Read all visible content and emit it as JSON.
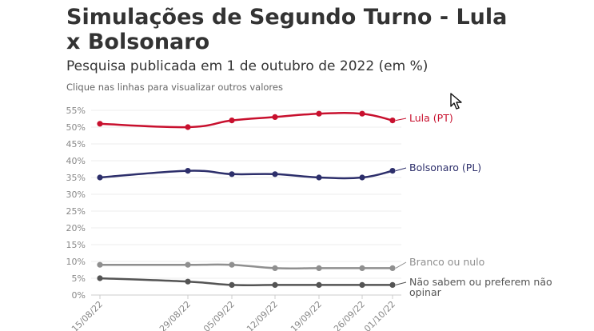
{
  "title": "Simulações de Segundo Turno - Lula x Bolsonaro",
  "subtitle": "Pesquisa publicada em 1 de outubro de 2022 (em %)",
  "hint": "Clique nas linhas para visualizar outros valores",
  "chart_data": {
    "type": "line",
    "x": [
      "15/08/22",
      "29/08/22",
      "05/09/22",
      "12/09/22",
      "19/09/22",
      "26/09/22",
      "01/10/22"
    ],
    "ylim": [
      0,
      55
    ],
    "y_ticks": [
      0,
      5,
      10,
      15,
      20,
      25,
      30,
      35,
      40,
      45,
      50,
      55
    ],
    "y_tick_suffix": "%",
    "grid": true,
    "series": [
      {
        "name": "Lula (PT)",
        "color": "#c8102e",
        "values": [
          51,
          50,
          52,
          53,
          54,
          54,
          52
        ]
      },
      {
        "name": "Bolsonaro (PL)",
        "color": "#2d2f6b",
        "values": [
          35,
          37,
          36,
          36,
          35,
          35,
          37
        ]
      },
      {
        "name": "Branco ou nulo",
        "color": "#8f8f8f",
        "values": [
          9,
          9,
          9,
          8,
          8,
          8,
          8
        ]
      },
      {
        "name": "Não sabem ou preferem não opinar",
        "color": "#545454",
        "values": [
          5,
          4,
          3,
          3,
          3,
          3,
          3
        ]
      }
    ]
  }
}
